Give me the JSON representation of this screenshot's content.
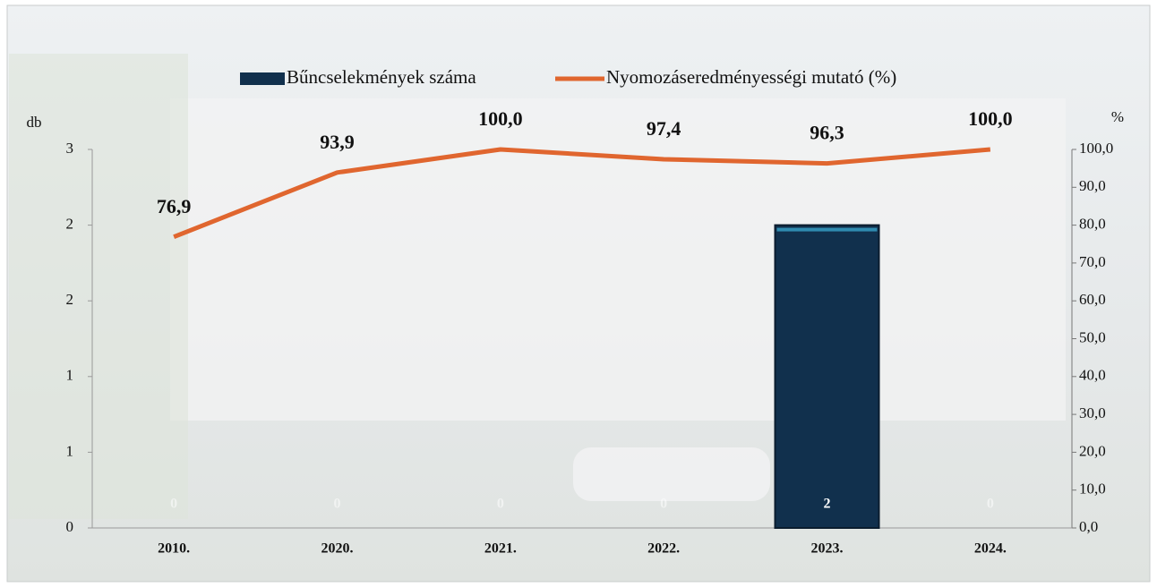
{
  "chart_data": {
    "type": "bar-line",
    "categories": [
      "2010.",
      "2020.",
      "2021.",
      "2022.",
      "2023.",
      "2024."
    ],
    "y_label": "db",
    "y2_label": "%",
    "series": [
      {
        "name": "Bűncselekmények száma",
        "type": "bar",
        "color": "#11304d",
        "values": [
          0,
          0,
          0,
          0,
          2,
          0
        ],
        "value_labels": [
          "0",
          "0",
          "0",
          "0",
          "2",
          "0"
        ]
      },
      {
        "name": "Nyomozáseredményességi mutató (%)",
        "type": "line",
        "axis": "y2",
        "color": "#e0662f",
        "values": [
          76.9,
          93.9,
          100.0,
          97.4,
          96.3,
          100.0
        ],
        "value_labels": [
          "76,9",
          "93,9",
          "100,0",
          "97,4",
          "96,3",
          "100,0"
        ]
      }
    ],
    "ylim": [
      0,
      2.5
    ],
    "yticks": [
      0,
      {
        "value": 0.5,
        "label": "1"
      },
      {
        "value": 1,
        "label": "1"
      },
      {
        "value": 1.5,
        "label": "2"
      },
      {
        "value": 2,
        "label": "2"
      },
      {
        "value": 2.5,
        "label": "3"
      }
    ],
    "y2lim": [
      0,
      100
    ],
    "y2ticks": [
      {
        "value": 0,
        "label": "0,0"
      },
      {
        "value": 10,
        "label": "10,0"
      },
      {
        "value": 20,
        "label": "20,0"
      },
      {
        "value": 30,
        "label": "30,0"
      },
      {
        "value": 40,
        "label": "40,0"
      },
      {
        "value": 50,
        "label": "50,0"
      },
      {
        "value": 60,
        "label": "60,0"
      },
      {
        "value": 70,
        "label": "70,0"
      },
      {
        "value": 80,
        "label": "80,0"
      },
      {
        "value": 90,
        "label": "90,0"
      },
      {
        "value": 100,
        "label": "100,0"
      }
    ]
  }
}
